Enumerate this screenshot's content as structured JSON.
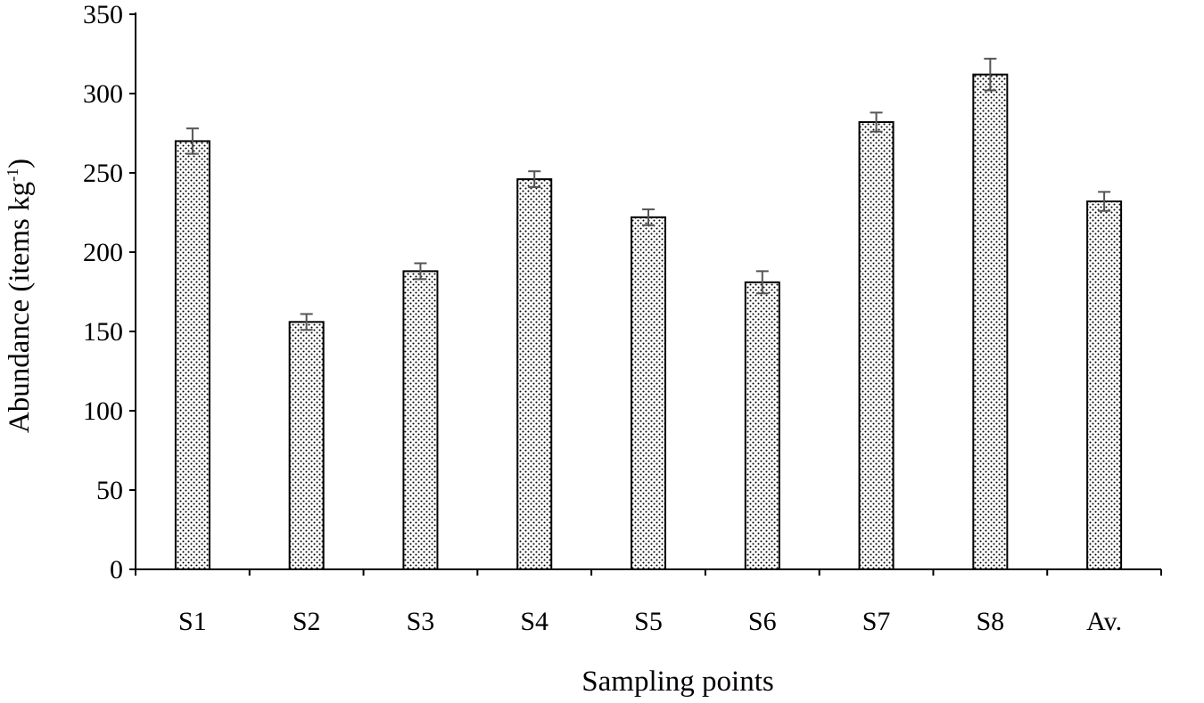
{
  "chart_data": {
    "type": "bar",
    "title": "",
    "xlabel": "Sampling points",
    "ylabel_main": "Abundance (items kg",
    "ylabel_sup": "-1",
    "ylabel_end": ")",
    "categories": [
      "S1",
      "S2",
      "S3",
      "S4",
      "S5",
      "S6",
      "S7",
      "S8",
      "Av."
    ],
    "series": [
      {
        "values": [
          270,
          156,
          188,
          246,
          222,
          181,
          282,
          312,
          232
        ],
        "error": [
          8,
          5,
          5,
          5,
          5,
          7,
          6,
          10,
          6
        ]
      }
    ],
    "ylim": [
      0,
      350
    ],
    "yticks": [
      0,
      50,
      100,
      150,
      200,
      250,
      300,
      350
    ],
    "grid": false,
    "legend": "none",
    "colors": {
      "bar_fill": "#ffffff",
      "bar_dots": "#000000",
      "bar_stroke": "#000000",
      "error_bar": "#555555",
      "axis": "#000000"
    }
  }
}
